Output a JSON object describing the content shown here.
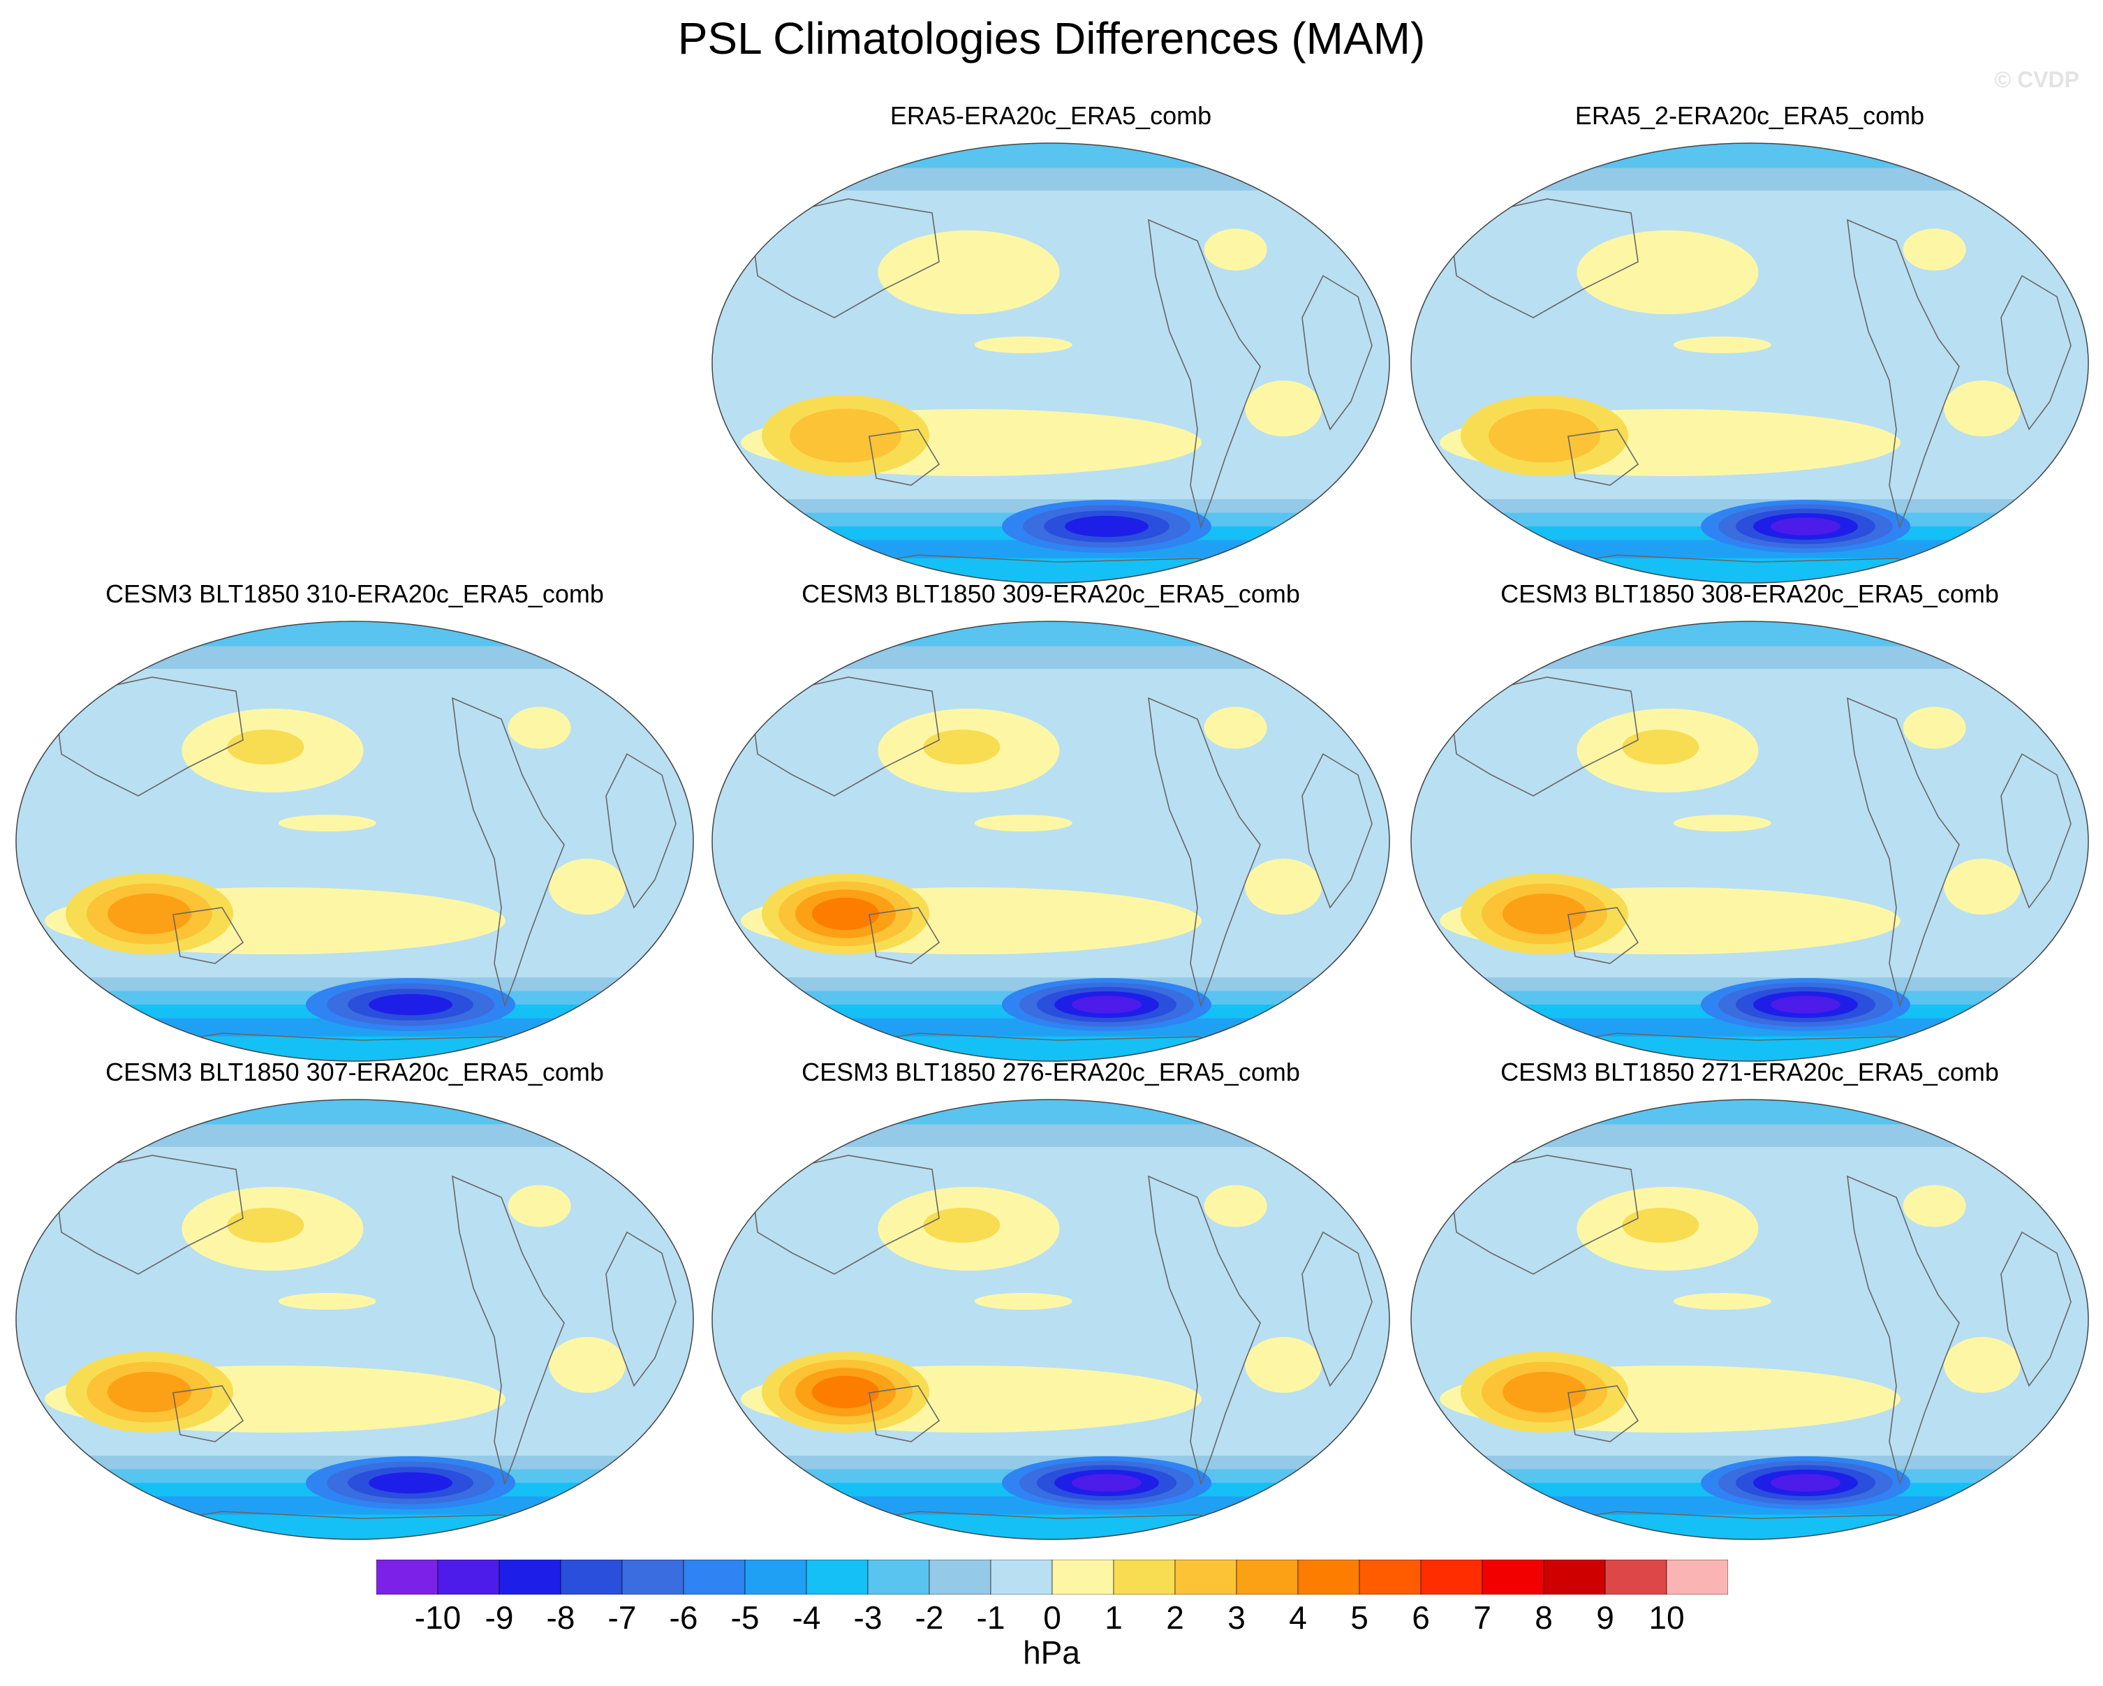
{
  "figure": {
    "title": "PSL Climatologies Differences (MAM)",
    "copyright": "© CVDP"
  },
  "chart_data": {
    "type": "heatmap",
    "projection": "global ellipse (world map)",
    "units": "hPa",
    "levels": [
      -10,
      -9,
      -8,
      -7,
      -6,
      -5,
      -4,
      -3,
      -2,
      -1,
      0,
      1,
      2,
      3,
      4,
      5,
      6,
      7,
      8,
      9,
      10
    ],
    "tick_labels": [
      "-10",
      "-9",
      "-8",
      "-7",
      "-6",
      "-5",
      "-4",
      "-3",
      "-2",
      "-1",
      "0",
      "1",
      "2",
      "3",
      "4",
      "5",
      "6",
      "7",
      "8",
      "9",
      "10"
    ],
    "colors": [
      "#7c22e8",
      "#4d1cea",
      "#1e1ee9",
      "#2a4fdc",
      "#3a6de0",
      "#2f83f2",
      "#20a0f4",
      "#14c0f5",
      "#58c4ef",
      "#94c9e8",
      "#b9dff2",
      "#fdf7a5",
      "#f8dd52",
      "#fbc335",
      "#fca015",
      "#fd7d00",
      "#ff5c00",
      "#ff2d00",
      "#f20000",
      "#cf0000",
      "#de4747",
      "#fbb4b4"
    ],
    "panels": [
      {
        "title": "ERA5-ERA20c_ERA5_comb",
        "south_low_hPa": -8,
        "sw_high_hPa": 2,
        "npac_high_hPa": 1
      },
      {
        "title": "ERA5_2-ERA20c_ERA5_comb",
        "south_low_hPa": -9,
        "sw_high_hPa": 2,
        "npac_high_hPa": 1
      },
      {
        "title": "CESM3 BLT1850 310-ERA20c_ERA5_comb",
        "south_low_hPa": -8,
        "sw_high_hPa": 3,
        "npac_high_hPa": 2
      },
      {
        "title": "CESM3 BLT1850 309-ERA20c_ERA5_comb",
        "south_low_hPa": -9,
        "sw_high_hPa": 4,
        "npac_high_hPa": 2
      },
      {
        "title": "CESM3 BLT1850 308-ERA20c_ERA5_comb",
        "south_low_hPa": -9,
        "sw_high_hPa": 3,
        "npac_high_hPa": 2
      },
      {
        "title": "CESM3 BLT1850 307-ERA20c_ERA5_comb",
        "south_low_hPa": -8,
        "sw_high_hPa": 3,
        "npac_high_hPa": 2
      },
      {
        "title": "CESM3 BLT1850 276-ERA20c_ERA5_comb",
        "south_low_hPa": -9,
        "sw_high_hPa": 4,
        "npac_high_hPa": 2
      },
      {
        "title": "CESM3 BLT1850 271-ERA20c_ERA5_comb",
        "south_low_hPa": -9,
        "sw_high_hPa": 3,
        "npac_high_hPa": 2
      }
    ]
  }
}
